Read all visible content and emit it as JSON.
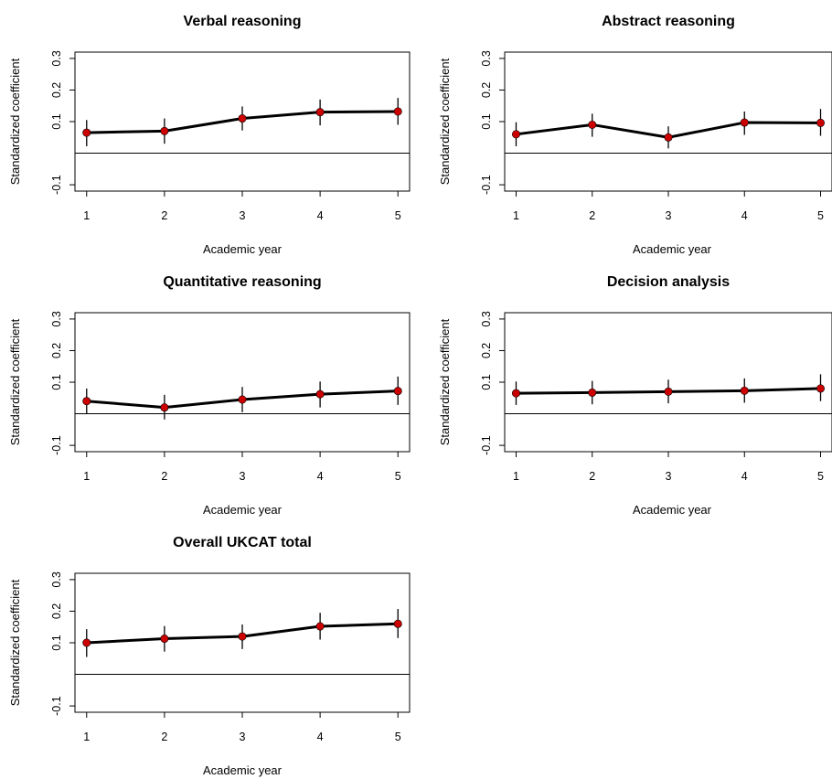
{
  "chart_data": [
    {
      "type": "line",
      "title": "Verbal reasoning",
      "xlabel": "Academic year",
      "ylabel": "Standardized coefficient",
      "x": [
        1,
        2,
        3,
        4,
        5
      ],
      "y": [
        0.065,
        0.07,
        0.11,
        0.13,
        0.132
      ],
      "ci_lower": [
        0.022,
        0.03,
        0.072,
        0.088,
        0.09
      ],
      "ci_upper": [
        0.105,
        0.11,
        0.148,
        0.17,
        0.175
      ],
      "xticks": [
        "1",
        "2",
        "3",
        "4",
        "5"
      ],
      "yticks": [
        "-0.1",
        "0.1",
        "0.2",
        "0.3"
      ],
      "ylim": [
        -0.12,
        0.32
      ],
      "reference_line": 0
    },
    {
      "type": "line",
      "title": "Abstract reasoning",
      "xlabel": "Academic year",
      "ylabel": "Standardized coefficient",
      "x": [
        1,
        2,
        3,
        4,
        5
      ],
      "y": [
        0.06,
        0.09,
        0.05,
        0.097,
        0.096
      ],
      "ci_lower": [
        0.022,
        0.052,
        0.015,
        0.058,
        0.055
      ],
      "ci_upper": [
        0.098,
        0.125,
        0.085,
        0.132,
        0.14
      ],
      "xticks": [
        "1",
        "2",
        "3",
        "4",
        "5"
      ],
      "yticks": [
        "-0.1",
        "0.1",
        "0.2",
        "0.3"
      ],
      "ylim": [
        -0.12,
        0.32
      ],
      "reference_line": 0
    },
    {
      "type": "line",
      "title": "Quantitative reasoning",
      "xlabel": "Academic year",
      "ylabel": "Standardized coefficient",
      "x": [
        1,
        2,
        3,
        4,
        5
      ],
      "y": [
        0.04,
        0.02,
        0.045,
        0.062,
        0.072
      ],
      "ci_lower": [
        0.0,
        -0.018,
        0.005,
        0.02,
        0.028
      ],
      "ci_upper": [
        0.08,
        0.06,
        0.085,
        0.102,
        0.118
      ],
      "xticks": [
        "1",
        "2",
        "3",
        "4",
        "5"
      ],
      "yticks": [
        "-0.1",
        "0.1",
        "0.2",
        "0.3"
      ],
      "ylim": [
        -0.12,
        0.32
      ],
      "reference_line": 0
    },
    {
      "type": "line",
      "title": "Decision analysis",
      "xlabel": "Academic year",
      "ylabel": "Standardized coefficient",
      "x": [
        1,
        2,
        3,
        4,
        5
      ],
      "y": [
        0.065,
        0.067,
        0.07,
        0.073,
        0.08
      ],
      "ci_lower": [
        0.028,
        0.03,
        0.033,
        0.035,
        0.04
      ],
      "ci_upper": [
        0.102,
        0.104,
        0.108,
        0.112,
        0.125
      ],
      "xticks": [
        "1",
        "2",
        "3",
        "4",
        "5"
      ],
      "yticks": [
        "-0.1",
        "0.1",
        "0.2",
        "0.3"
      ],
      "ylim": [
        -0.12,
        0.32
      ],
      "reference_line": 0
    },
    {
      "type": "line",
      "title": "Overall UKCAT total",
      "xlabel": "Academic year",
      "ylabel": "Standardized coefficient",
      "x": [
        1,
        2,
        3,
        4,
        5
      ],
      "y": [
        0.1,
        0.113,
        0.12,
        0.152,
        0.16
      ],
      "ci_lower": [
        0.055,
        0.072,
        0.08,
        0.11,
        0.115
      ],
      "ci_upper": [
        0.143,
        0.153,
        0.158,
        0.195,
        0.207
      ],
      "xticks": [
        "1",
        "2",
        "3",
        "4",
        "5"
      ],
      "yticks": [
        "-0.1",
        "0.1",
        "0.2",
        "0.3"
      ],
      "ylim": [
        -0.12,
        0.32
      ],
      "reference_line": 0
    }
  ],
  "colors": {
    "line": "#000000",
    "point": "#cc0000",
    "errorbar": "#000000"
  }
}
